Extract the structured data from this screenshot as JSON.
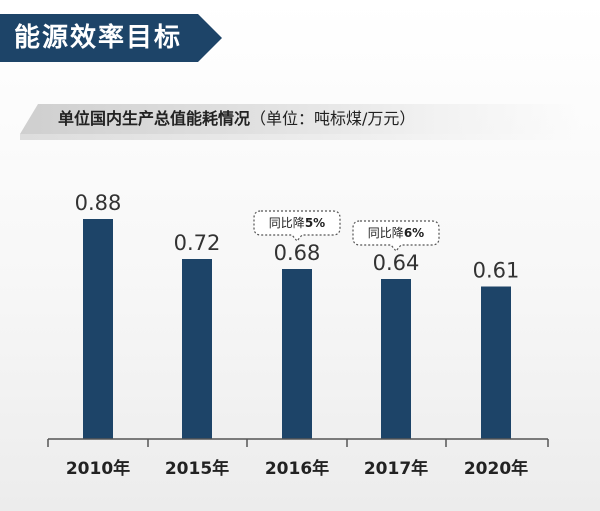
{
  "header": {
    "title": "能源效率目标"
  },
  "subtitle": {
    "main": "单位国内生产总值能耗情况",
    "unit": "（单位：吨标煤/万元）"
  },
  "chart_data": {
    "type": "bar",
    "title": "单位国内生产总值能耗情况",
    "unit": "吨标煤/万元",
    "categories": [
      "2010年",
      "2015年",
      "2016年",
      "2017年",
      "2020年"
    ],
    "values": [
      0.88,
      0.72,
      0.68,
      0.64,
      0.61
    ],
    "value_labels": [
      "0.88",
      "0.72",
      "0.68",
      "0.64",
      "0.61"
    ],
    "ylim": [
      0,
      1.0
    ],
    "grid": false,
    "legend": "none",
    "bar_color": "#1d4468",
    "annotations": [
      {
        "category_index": 2,
        "prefix": "同比降",
        "value": "5%"
      },
      {
        "category_index": 3,
        "prefix": "同比降",
        "value": "6%"
      }
    ]
  }
}
